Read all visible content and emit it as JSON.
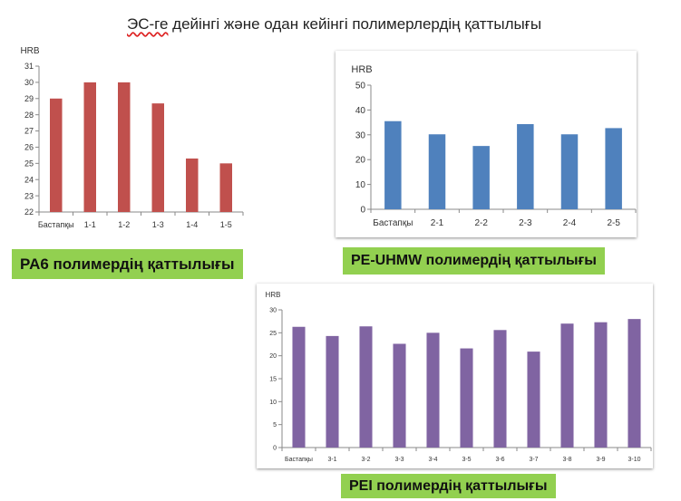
{
  "page_title": {
    "prefix": "ЭС-ге",
    "rest": " дейінгі және одан кейінгі полимерлердің қаттылығы"
  },
  "chart_data": [
    {
      "type": "bar",
      "ylabel": "HRB",
      "ylim": [
        22,
        31
      ],
      "yticks": [
        22,
        23,
        24,
        25,
        26,
        27,
        28,
        29,
        30,
        31
      ],
      "categories": [
        "Бастапқы",
        "1-1",
        "1-2",
        "1-3",
        "1-4",
        "1-5"
      ],
      "values": [
        29.0,
        30.0,
        30.0,
        28.7,
        25.3,
        25.0
      ],
      "color": "#c0504d",
      "grid": false,
      "caption": "PA6 полимердің қаттылығы"
    },
    {
      "type": "bar",
      "ylabel": "HRB",
      "ylim": [
        0,
        50
      ],
      "yticks": [
        0,
        10,
        20,
        30,
        40,
        50
      ],
      "categories": [
        "Бастапқы",
        "2-1",
        "2-2",
        "2-3",
        "2-4",
        "2-5"
      ],
      "values": [
        35.5,
        30.2,
        25.5,
        34.3,
        30.2,
        32.7
      ],
      "color": "#4f81bd",
      "grid": false,
      "caption": "PE-UHMW полимердің қаттылығы"
    },
    {
      "type": "bar",
      "ylabel": "HRB",
      "ylim": [
        0,
        30
      ],
      "yticks": [
        0,
        5,
        10,
        15,
        20,
        25,
        30
      ],
      "categories": [
        "Бастапқы",
        "3-1",
        "3-2",
        "3-3",
        "3-4",
        "3-5",
        "3-6",
        "3-7",
        "3-8",
        "3-9",
        "3-10"
      ],
      "values": [
        26.3,
        24.3,
        26.4,
        22.6,
        25.0,
        21.6,
        25.6,
        20.9,
        27.0,
        27.3,
        28.0
      ],
      "color": "#8064a2",
      "grid": false,
      "caption": "PEI полимердің қаттылығы"
    }
  ]
}
